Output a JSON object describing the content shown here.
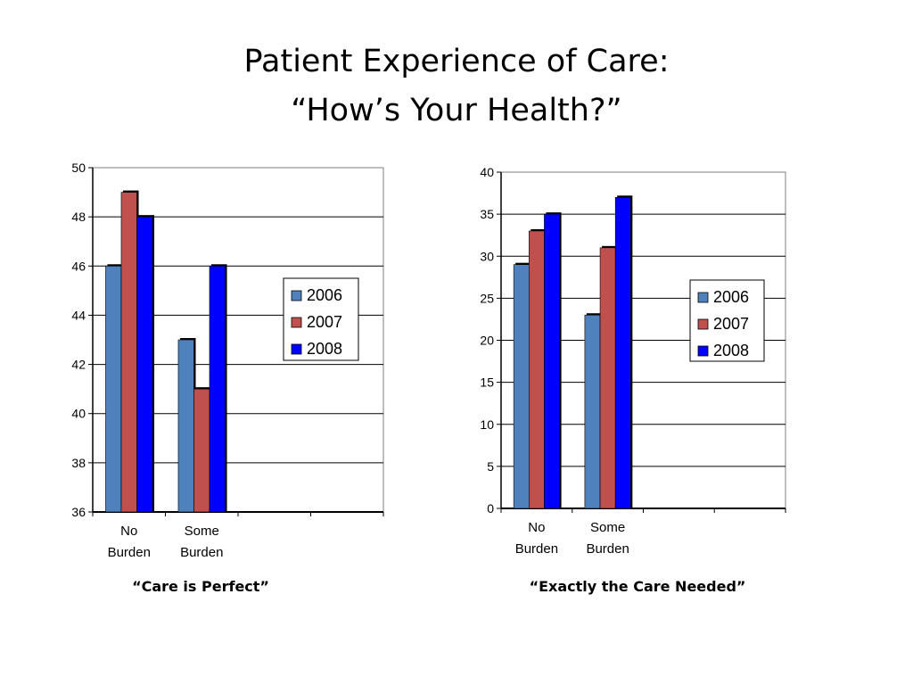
{
  "slide": {
    "title_line1": "Patient Experience of Care:",
    "title_line2": "“How’s Your Health?”"
  },
  "colors": {
    "2006": "#4f81bd",
    "2007": "#c0504d",
    "2008": "#0000ff"
  },
  "chart_data": [
    {
      "type": "bar",
      "caption": "“Care is Perfect”",
      "categories": [
        [
          "No",
          "Burden"
        ],
        [
          "Some",
          "Burden"
        ],
        [
          "",
          ""
        ],
        [
          "",
          ""
        ]
      ],
      "series": [
        {
          "name": "2006",
          "values": [
            46,
            43,
            null,
            null
          ]
        },
        {
          "name": "2007",
          "values": [
            49,
            41,
            null,
            null
          ]
        },
        {
          "name": "2008",
          "values": [
            48,
            46,
            null,
            null
          ]
        }
      ],
      "ylim": [
        36,
        50
      ],
      "yticks": [
        36,
        38,
        40,
        42,
        44,
        46,
        48,
        50
      ],
      "grid": true,
      "legend": "right"
    },
    {
      "type": "bar",
      "caption": "“Exactly the Care Needed”",
      "categories": [
        [
          "No",
          "Burden"
        ],
        [
          "Some",
          "Burden"
        ],
        [
          "",
          ""
        ],
        [
          "",
          ""
        ]
      ],
      "series": [
        {
          "name": "2006",
          "values": [
            29,
            23,
            null,
            null
          ]
        },
        {
          "name": "2007",
          "values": [
            33,
            31,
            null,
            null
          ]
        },
        {
          "name": "2008",
          "values": [
            35,
            37,
            null,
            null
          ]
        }
      ],
      "ylim": [
        0,
        40
      ],
      "yticks": [
        0,
        5,
        10,
        15,
        20,
        25,
        30,
        35,
        40
      ],
      "grid": true,
      "legend": "right"
    }
  ]
}
